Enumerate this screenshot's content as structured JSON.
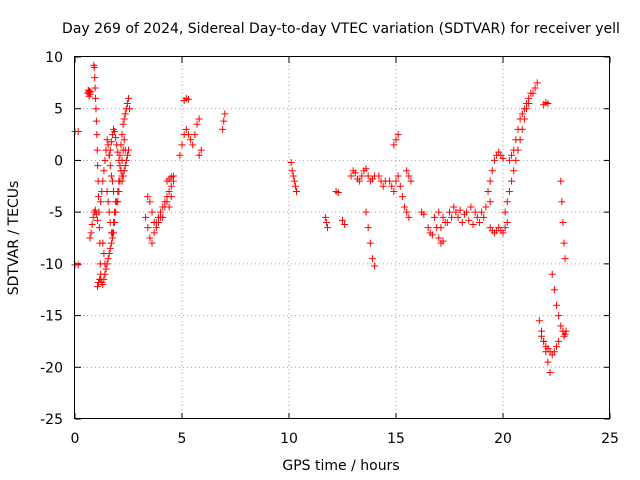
{
  "chart_data": {
    "type": "scatter",
    "title": "Day 269 of 2024, Sidereal Day-to-day VTEC variation (SDTVAR) for receiver yell",
    "xlabel": "GPS time / hours",
    "ylabel": "SDTVAR / TECUs",
    "xlim": [
      0,
      25
    ],
    "ylim": [
      -25,
      10
    ],
    "grid": true,
    "x_ticks": [
      0,
      5,
      10,
      15,
      20,
      25
    ],
    "x_tick_labels": [
      "0",
      "5",
      "10",
      "15",
      "20",
      "25"
    ],
    "y_ticks": [
      -25,
      -20,
      -15,
      -10,
      -5,
      0,
      5,
      10
    ],
    "y_tick_labels": [
      "-25",
      "-20",
      "-15",
      "-10",
      "-5",
      "0",
      "5",
      "10"
    ],
    "marker": "+",
    "color": "#ff0000",
    "series": [
      {
        "name": "SDTVAR",
        "segments": [
          {
            "x": [
              0.0,
              0.15
            ],
            "y": [
              2.8,
              2.8
            ]
          },
          {
            "x": [
              0.0,
              0.15
            ],
            "y": [
              -10.1,
              -10.1
            ]
          },
          {
            "x": [
              0.6,
              0.62,
              0.64,
              0.66,
              0.68,
              0.7,
              0.72
            ],
            "y": [
              6.5,
              6.8,
              6.6,
              6.2,
              6.7,
              6.4,
              6.6
            ]
          },
          {
            "x": [
              0.7,
              0.75,
              0.8,
              0.85,
              0.9,
              0.95,
              1.0,
              1.05
            ],
            "y": [
              -7.5,
              -7.0,
              -6.2,
              -5.5,
              -5.0,
              -4.8,
              -5.2,
              -5.8
            ]
          },
          {
            "x": [
              0.88,
              0.9,
              0.92,
              0.94,
              0.96,
              0.98,
              1.0,
              1.02,
              1.04,
              1.06,
              1.08,
              1.1,
              1.12,
              1.14,
              1.16,
              1.18,
              1.2
            ],
            "y": [
              9.2,
              9.0,
              8.0,
              7.0,
              6.0,
              5.0,
              3.8,
              2.5,
              1.0,
              -0.5,
              -2.0,
              -3.5,
              -5.0,
              -6.5,
              -8.0,
              -10.0,
              -11.5
            ]
          },
          {
            "x": [
              1.05,
              1.1,
              1.15,
              1.2,
              1.25,
              1.3,
              1.35,
              1.4
            ],
            "y": [
              -12.2,
              -11.8,
              -11.5,
              -11.0,
              -11.8,
              -12.0,
              -11.5,
              -11.0
            ]
          },
          {
            "x": [
              1.2,
              1.25,
              1.3,
              1.35,
              1.4,
              1.45,
              1.5,
              1.55,
              1.6,
              1.65,
              1.7,
              1.75,
              1.8
            ],
            "y": [
              -4.0,
              -3.0,
              -2.0,
              -1.0,
              0.0,
              1.0,
              2.0,
              1.5,
              0.5,
              -0.5,
              -1.5,
              -2.0,
              -3.0
            ]
          },
          {
            "x": [
              1.3,
              1.35,
              1.4,
              1.45,
              1.5,
              1.55,
              1.6,
              1.65,
              1.7,
              1.75,
              1.8,
              1.85,
              1.9
            ],
            "y": [
              -8.0,
              -9.0,
              -10.0,
              -10.5,
              -10.0,
              -9.5,
              -9.0,
              -8.5,
              -8.0,
              -7.0,
              -6.0,
              -5.0,
              -4.0
            ]
          },
          {
            "x": [
              1.5,
              1.55,
              1.6,
              1.65,
              1.7,
              1.75,
              1.8,
              1.85,
              1.9,
              1.95,
              2.0,
              2.05
            ],
            "y": [
              -3.0,
              -4.0,
              -5.0,
              -6.0,
              -7.0,
              -7.5,
              -7.0,
              -6.0,
              -5.0,
              -4.0,
              -3.0,
              -2.0
            ]
          },
          {
            "x": [
              1.6,
              1.65,
              1.7,
              1.75,
              1.8,
              1.85,
              1.9,
              1.95,
              2.0,
              2.05,
              2.1,
              2.15,
              2.2
            ],
            "y": [
              0.5,
              1.0,
              1.8,
              2.5,
              3.0,
              2.8,
              2.2,
              1.5,
              0.8,
              0.0,
              -0.5,
              -1.0,
              -1.5
            ]
          },
          {
            "x": [
              2.0,
              2.05,
              2.1,
              2.15,
              2.2,
              2.25,
              2.3,
              2.35
            ],
            "y": [
              -4.0,
              -3.0,
              -2.0,
              -1.0,
              0.0,
              1.0,
              2.0,
              1.0
            ]
          },
          {
            "x": [
              2.1,
              2.15,
              2.2,
              2.25,
              2.3,
              2.35,
              2.4,
              2.45,
              2.5,
              2.55
            ],
            "y": [
              0.5,
              1.5,
              2.5,
              3.5,
              4.0,
              4.5,
              5.0,
              5.5,
              6.0,
              5.0
            ]
          },
          {
            "x": [
              2.2,
              2.25,
              2.3,
              2.35,
              2.4,
              2.45,
              2.5
            ],
            "y": [
              -2.0,
              -1.5,
              -1.0,
              -0.5,
              0.0,
              0.5,
              1.0
            ]
          },
          {
            "x": [
              3.3,
              3.4,
              3.5,
              3.6,
              3.7,
              3.8,
              3.9,
              4.0,
              4.1,
              4.2,
              4.3,
              4.4,
              4.5
            ],
            "y": [
              -5.5,
              -6.5,
              -7.5,
              -8.0,
              -7.0,
              -6.0,
              -5.5,
              -5.0,
              -5.5,
              -4.5,
              -4.0,
              -4.5,
              -3.5
            ]
          },
          {
            "x": [
              3.4,
              3.5,
              3.6,
              3.7,
              3.8,
              3.9,
              4.0,
              4.1,
              4.2,
              4.3,
              4.4,
              4.5,
              4.6
            ],
            "y": [
              -3.5,
              -4.0,
              -5.0,
              -6.0,
              -6.5,
              -6.0,
              -5.5,
              -4.5,
              -4.0,
              -3.5,
              -3.0,
              -2.5,
              -2.0
            ]
          },
          {
            "x": [
              4.3,
              4.4,
              4.5,
              4.6
            ],
            "y": [
              -2.0,
              -1.8,
              -1.6,
              -1.5
            ]
          },
          {
            "x": [
              4.9,
              5.0,
              5.1,
              5.2,
              5.3,
              5.4,
              5.5
            ],
            "y": [
              0.5,
              1.5,
              2.5,
              3.0,
              2.5,
              2.0,
              1.5
            ]
          },
          {
            "x": [
              5.1,
              5.2,
              5.3
            ],
            "y": [
              5.8,
              6.0,
              5.9
            ]
          },
          {
            "x": [
              5.6,
              5.7,
              5.8
            ],
            "y": [
              2.5,
              3.5,
              4.0
            ]
          },
          {
            "x": [
              5.8,
              5.9
            ],
            "y": [
              0.5,
              1.0
            ]
          },
          {
            "x": [
              6.9,
              6.95,
              7.0
            ],
            "y": [
              3.0,
              3.8,
              4.5
            ]
          },
          {
            "x": [
              10.1,
              10.15,
              10.2,
              10.25,
              10.3,
              10.35
            ],
            "y": [
              -0.2,
              -1.0,
              -1.5,
              -2.0,
              -2.5,
              -3.0
            ]
          },
          {
            "x": [
              11.7,
              11.75,
              11.8
            ],
            "y": [
              -5.5,
              -6.0,
              -6.5
            ]
          },
          {
            "x": [
              12.2,
              12.3
            ],
            "y": [
              -3.0,
              -3.1
            ]
          },
          {
            "x": [
              12.5,
              12.6
            ],
            "y": [
              -5.8,
              -6.2
            ]
          },
          {
            "x": [
              12.9,
              13.0,
              13.1,
              13.2,
              13.3,
              13.4,
              13.5,
              13.6,
              13.7,
              13.8,
              13.9,
              14.0
            ],
            "y": [
              -1.5,
              -1.0,
              -1.2,
              -1.8,
              -2.0,
              -1.5,
              -1.0,
              -0.8,
              -1.5,
              -2.0,
              -1.8,
              -1.5
            ]
          },
          {
            "x": [
              13.6,
              13.7,
              13.8,
              13.9,
              14.0
            ],
            "y": [
              -5.0,
              -6.5,
              -8.0,
              -9.5,
              -10.2
            ]
          },
          {
            "x": [
              14.2,
              14.3,
              14.4,
              14.5
            ],
            "y": [
              -1.5,
              -2.0,
              -2.5,
              -2.0
            ]
          },
          {
            "x": [
              14.9,
              15.0,
              15.1
            ],
            "y": [
              1.5,
              2.0,
              2.5
            ]
          },
          {
            "x": [
              14.7,
              14.8,
              14.9,
              15.0,
              15.1,
              15.2,
              15.3
            ],
            "y": [
              -2.0,
              -2.5,
              -3.0,
              -2.0,
              -1.5,
              -2.5,
              -3.5
            ]
          },
          {
            "x": [
              15.4,
              15.5,
              15.6
            ],
            "y": [
              -4.5,
              -5.0,
              -5.5
            ]
          },
          {
            "x": [
              15.5,
              15.6,
              15.7
            ],
            "y": [
              -1.0,
              -1.5,
              -2.0
            ]
          },
          {
            "x": [
              16.2,
              16.3
            ],
            "y": [
              -5.0,
              -5.2
            ]
          },
          {
            "x": [
              16.5,
              16.6,
              16.7
            ],
            "y": [
              -6.5,
              -7.0,
              -7.2
            ]
          },
          {
            "x": [
              16.8,
              16.9,
              17.0,
              17.1,
              17.2
            ],
            "y": [
              -5.5,
              -6.5,
              -7.5,
              -8.0,
              -7.8
            ]
          },
          {
            "x": [
              17.0,
              17.2,
              17.4,
              17.6,
              17.8,
              18.0,
              18.2,
              18.4,
              18.6,
              18.8,
              19.0,
              19.2,
              19.4
            ],
            "y": [
              -5.0,
              -5.5,
              -6.0,
              -5.5,
              -5.0,
              -4.8,
              -5.2,
              -5.8,
              -6.2,
              -5.5,
              -5.0,
              -4.5,
              -4.0
            ]
          },
          {
            "x": [
              17.1,
              17.3,
              17.5,
              17.7,
              17.9,
              18.1,
              18.3,
              18.5,
              18.7,
              18.9,
              19.1
            ],
            "y": [
              -6.5,
              -6.0,
              -5.0,
              -4.5,
              -5.5,
              -6.0,
              -5.0,
              -4.5,
              -5.0,
              -6.0,
              -5.5
            ]
          },
          {
            "x": [
              19.4,
              19.5,
              19.6,
              19.7,
              19.8,
              19.9,
              20.0,
              20.1,
              20.2
            ],
            "y": [
              -6.5,
              -6.8,
              -7.0,
              -6.8,
              -6.5,
              -6.8,
              -7.0,
              -6.5,
              -6.0
            ]
          },
          {
            "x": [
              19.3,
              19.4,
              19.5,
              19.6,
              19.7,
              19.8,
              19.9,
              20.0
            ],
            "y": [
              -3.0,
              -2.0,
              -1.0,
              0.0,
              0.5,
              0.8,
              0.5,
              0.2
            ]
          },
          {
            "x": [
              20.1,
              20.2,
              20.3,
              20.4,
              20.5,
              20.6,
              20.7,
              20.8,
              20.9,
              21.0,
              21.1,
              21.2
            ],
            "y": [
              -5.0,
              -4.0,
              -3.0,
              -2.0,
              -1.0,
              0.0,
              1.0,
              2.0,
              3.0,
              4.0,
              5.0,
              5.5
            ]
          },
          {
            "x": [
              20.3,
              20.4,
              20.5,
              20.6,
              20.7,
              20.8,
              20.9,
              21.0,
              21.1,
              21.2,
              21.3
            ],
            "y": [
              0.0,
              0.5,
              1.0,
              2.0,
              3.0,
              4.0,
              4.5,
              5.0,
              5.5,
              6.0,
              6.5
            ]
          },
          {
            "x": [
              21.4,
              21.5,
              21.6
            ],
            "y": [
              6.5,
              7.0,
              7.5
            ]
          },
          {
            "x": [
              21.9,
              22.0,
              22.1
            ],
            "y": [
              5.4,
              5.6,
              5.5
            ]
          },
          {
            "x": [
              21.7,
              21.8,
              21.9,
              22.0,
              22.1,
              22.2
            ],
            "y": [
              -15.5,
              -16.5,
              -17.5,
              -18.5,
              -19.5,
              -20.5
            ]
          },
          {
            "x": [
              21.8,
              21.9,
              22.0,
              22.1,
              22.2,
              22.3,
              22.4,
              22.5,
              22.6
            ],
            "y": [
              -17.0,
              -17.5,
              -18.0,
              -18.2,
              -18.5,
              -18.8,
              -18.5,
              -18.0,
              -17.5
            ]
          },
          {
            "x": [
              22.3,
              22.4,
              22.5,
              22.6,
              22.7,
              22.8
            ],
            "y": [
              -11.0,
              -12.5,
              -14.0,
              -15.0,
              -16.0,
              -16.5
            ]
          },
          {
            "x": [
              22.7,
              22.75,
              22.8,
              22.85,
              22.9
            ],
            "y": [
              -2.0,
              -4.0,
              -6.0,
              -8.0,
              -9.5
            ]
          },
          {
            "x": [
              22.8,
              22.85,
              22.9,
              22.95
            ],
            "y": [
              -16.5,
              -17.0,
              -16.8,
              -16.5
            ]
          }
        ]
      }
    ]
  }
}
